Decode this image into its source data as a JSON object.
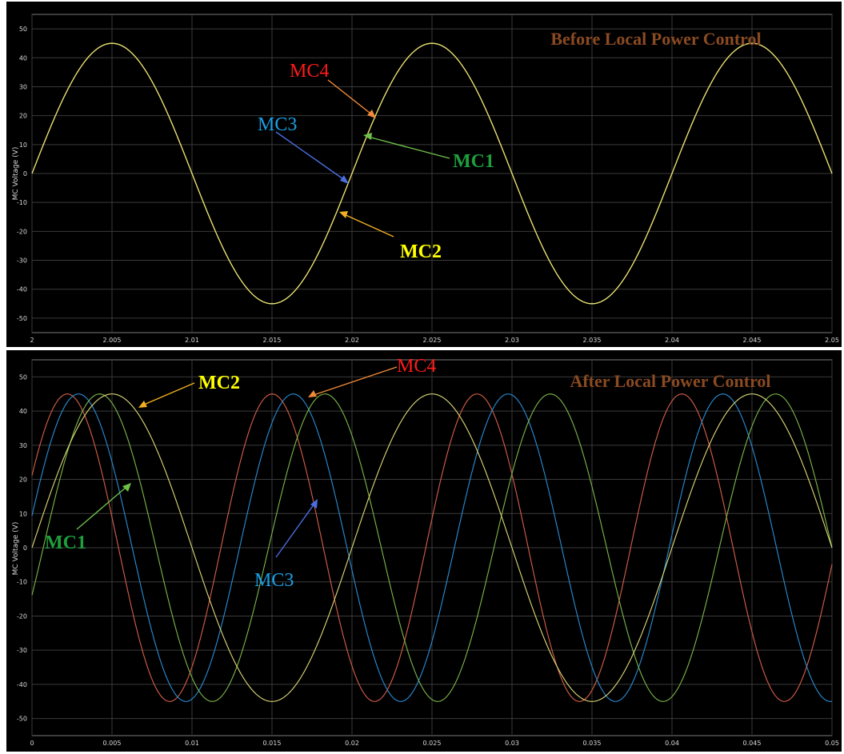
{
  "chart_data": [
    {
      "type": "line",
      "title": "Before Local Power Control",
      "ylabel": "MC Voltage (V)",
      "xlim": [
        2,
        2.05
      ],
      "ylim": [
        -55,
        55
      ],
      "x_ticks": [
        "2",
        "2.005",
        "2.01",
        "2.015",
        "2.02",
        "2.025",
        "2.03",
        "2.035",
        "2.04",
        "2.045",
        "2.05"
      ],
      "y_ticks": [
        "50",
        "40",
        "30",
        "20",
        "10",
        "0",
        "-10",
        "-20",
        "-30",
        "-40",
        "-50"
      ],
      "grid": true,
      "series": [
        {
          "name": "MC1",
          "amplitude": 45,
          "frequency_hz": 50,
          "phase_deg": 0,
          "color": "#e8e070"
        },
        {
          "name": "MC2",
          "amplitude": 45,
          "frequency_hz": 50,
          "phase_deg": 0,
          "color": "#e8e070"
        },
        {
          "name": "MC3",
          "amplitude": 45,
          "frequency_hz": 50,
          "phase_deg": 0,
          "color": "#e8e070"
        },
        {
          "name": "MC4",
          "amplitude": 45,
          "frequency_hz": 50,
          "phase_deg": 0,
          "color": "#e8e070"
        }
      ],
      "annotations": [
        {
          "text": "MC4",
          "color": "#ff1a1a",
          "bold": false
        },
        {
          "text": "MC3",
          "color": "#1aa0e6",
          "bold": false
        },
        {
          "text": "MC1",
          "color": "#1e9e3c",
          "bold": true
        },
        {
          "text": "MC2",
          "color": "#ffff00",
          "bold": true
        }
      ]
    },
    {
      "type": "line",
      "title": "After Local Power Control",
      "ylabel": "MC Voltage (V)",
      "xlim": [
        0,
        0.05
      ],
      "ylim": [
        -55,
        55
      ],
      "x_ticks": [
        "0",
        "0.005",
        "0.01",
        "0.015",
        "0.02",
        "0.025",
        "0.03",
        "0.035",
        "0.04",
        "0.045",
        "0.05"
      ],
      "y_ticks": [
        "50",
        "40",
        "30",
        "20",
        "10",
        "0",
        "-10",
        "-20",
        "-30",
        "-40",
        "-50"
      ],
      "grid": true,
      "series": [
        {
          "name": "MC4",
          "amplitude": 45,
          "frequency_hz": 78.1,
          "phase_deg": 28,
          "color": "#d8604a"
        },
        {
          "name": "MC3",
          "amplitude": 45,
          "frequency_hz": 74.5,
          "phase_deg": 12,
          "color": "#2a8ed8"
        },
        {
          "name": "MC1",
          "amplitude": 45,
          "frequency_hz": 71.0,
          "phase_deg": -18,
          "color": "#7fb84a"
        },
        {
          "name": "MC2",
          "amplitude": 45,
          "frequency_hz": 50,
          "phase_deg": 0,
          "color": "#e0dc78"
        }
      ],
      "annotations": [
        {
          "text": "MC2",
          "color": "#ffff00",
          "bold": true
        },
        {
          "text": "MC4",
          "color": "#ff1a1a",
          "bold": false
        },
        {
          "text": "MC1",
          "color": "#1e9e3c",
          "bold": true
        },
        {
          "text": "MC3",
          "color": "#1aa0e6",
          "bold": false
        }
      ]
    }
  ],
  "colors": {
    "background": "#000000",
    "grid": "#3a3a3a",
    "frame": "#8a8a8a",
    "title": "#8a4a22"
  }
}
